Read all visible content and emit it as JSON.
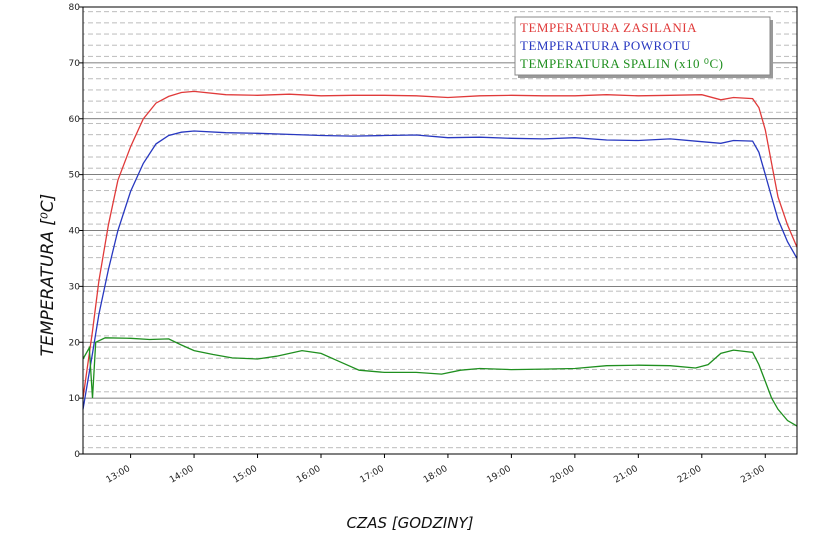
{
  "chart_data": {
    "type": "line",
    "xlabel": "CZAS [GODZINY]",
    "ylabel": "TEMPERATURA [⁰C]",
    "xlim": [
      12.25,
      23.5
    ],
    "ylim": [
      0,
      80
    ],
    "xticks": [
      {
        "value": 13,
        "label": "13:00"
      },
      {
        "value": 14,
        "label": "14:00"
      },
      {
        "value": 15,
        "label": "15:00"
      },
      {
        "value": 16,
        "label": "16:00"
      },
      {
        "value": 17,
        "label": "17:00"
      },
      {
        "value": 18,
        "label": "18:00"
      },
      {
        "value": 19,
        "label": "19:00"
      },
      {
        "value": 20,
        "label": "20:00"
      },
      {
        "value": 21,
        "label": "21:00"
      },
      {
        "value": 22,
        "label": "22:00"
      },
      {
        "value": 23,
        "label": "23:00"
      }
    ],
    "yticks": [
      0,
      10,
      20,
      30,
      40,
      50,
      60,
      70,
      80
    ],
    "grid": true,
    "legend": "upper right",
    "series": [
      {
        "name": "TEMPERATURA ZASILANIA",
        "color": "#e03a3a",
        "x": [
          12.25,
          12.4,
          12.5,
          12.65,
          12.8,
          13.0,
          13.2,
          13.4,
          13.6,
          13.8,
          14.0,
          14.5,
          15.0,
          15.5,
          16.0,
          16.5,
          17.0,
          17.5,
          18.0,
          18.5,
          19.0,
          19.5,
          20.0,
          20.5,
          21.0,
          21.5,
          22.0,
          22.3,
          22.5,
          22.8,
          22.9,
          23.0,
          23.1,
          23.2,
          23.35,
          23.5
        ],
        "values": [
          10,
          22,
          31,
          41,
          49,
          55,
          60,
          62.8,
          64,
          64.7,
          64.9,
          64.3,
          64.2,
          64.4,
          64.1,
          64.2,
          64.2,
          64.1,
          63.8,
          64.1,
          64.2,
          64.1,
          64.1,
          64.3,
          64.1,
          64.2,
          64.3,
          63.4,
          63.8,
          63.6,
          62,
          58,
          52,
          46,
          41,
          37
        ]
      },
      {
        "name": "TEMPERATURA POWROTU",
        "color": "#2838c0",
        "x": [
          12.25,
          12.4,
          12.5,
          12.65,
          12.8,
          13.0,
          13.2,
          13.4,
          13.6,
          13.8,
          14.0,
          14.5,
          15.0,
          15.5,
          16.0,
          16.5,
          17.0,
          17.5,
          18.0,
          18.5,
          19.0,
          19.5,
          20.0,
          20.5,
          21.0,
          21.5,
          22.0,
          22.3,
          22.5,
          22.8,
          22.9,
          23.0,
          23.1,
          23.2,
          23.35,
          23.5
        ],
        "values": [
          8,
          18,
          25,
          33,
          40,
          47,
          52,
          55.5,
          57,
          57.6,
          57.8,
          57.5,
          57.4,
          57.2,
          57,
          56.9,
          57,
          57.1,
          56.6,
          56.7,
          56.5,
          56.4,
          56.6,
          56.2,
          56.1,
          56.4,
          55.9,
          55.6,
          56.1,
          56,
          54,
          50,
          46,
          42,
          38,
          35
        ]
      },
      {
        "name": "TEMPERATURA SPALIN (x10 ⁰C)",
        "color": "#1f8f1f",
        "x": [
          12.25,
          12.35,
          12.4,
          12.45,
          12.6,
          13.0,
          13.3,
          13.6,
          13.8,
          14.0,
          14.3,
          14.6,
          15.0,
          15.3,
          15.7,
          16.0,
          16.3,
          16.6,
          17.0,
          17.5,
          17.9,
          18.2,
          18.5,
          19.0,
          19.5,
          20.0,
          20.5,
          21.0,
          21.5,
          21.9,
          22.1,
          22.3,
          22.5,
          22.8,
          22.9,
          23.0,
          23.1,
          23.2,
          23.35,
          23.5
        ],
        "values": [
          17,
          19,
          10,
          20,
          20.8,
          20.7,
          20.5,
          20.6,
          19.5,
          18.5,
          17.8,
          17.2,
          17,
          17.5,
          18.5,
          18,
          16.5,
          15,
          14.6,
          14.6,
          14.3,
          15,
          15.3,
          15.1,
          15.2,
          15.3,
          15.8,
          15.9,
          15.8,
          15.4,
          16,
          18,
          18.6,
          18.2,
          16,
          13,
          10,
          8,
          6,
          5
        ]
      }
    ]
  }
}
